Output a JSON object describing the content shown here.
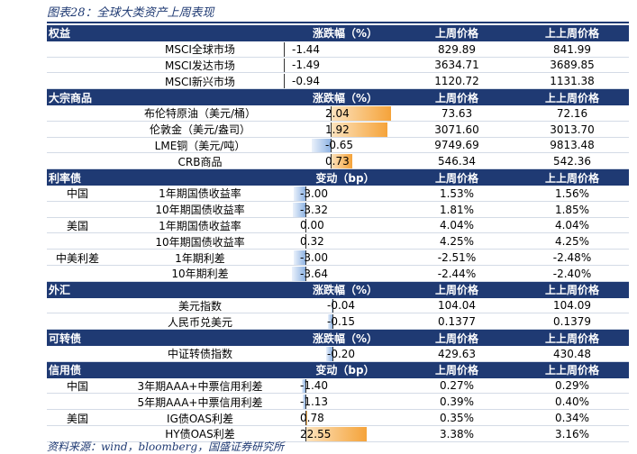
{
  "title": "图表28：全球大类资产上周表现",
  "source": "资料来源：wind，bloomberg，国盛证券研究所",
  "colors": {
    "header": "#1f3a73",
    "neg_bar": "#8fb4e3",
    "pos_bar": "#f5a33a"
  },
  "sections": [
    {
      "name": "权益",
      "headers": [
        "涨跌幅（%）",
        "上周价格",
        "上上周价格"
      ],
      "rows": [
        {
          "sub": "",
          "name": "MSCI全球市场",
          "chg": "-1.44",
          "v": -1.44,
          "p1": "829.89",
          "p2": "841.99"
        },
        {
          "sub": "",
          "name": "MSCI发达市场",
          "chg": "-1.49",
          "v": -1.49,
          "p1": "3634.71",
          "p2": "3689.85"
        },
        {
          "sub": "",
          "name": "MSCI新兴市场",
          "chg": "-0.94",
          "v": -0.94,
          "p1": "1120.72",
          "p2": "1131.38"
        }
      ]
    },
    {
      "name": "大宗商品",
      "headers": [
        "涨跌幅（%）",
        "上周价格",
        "上上周价格"
      ],
      "rows": [
        {
          "sub": "",
          "name": "布伦特原油（美元/桶）",
          "chg": "2.04",
          "v": 2.04,
          "p1": "73.63",
          "p2": "72.16"
        },
        {
          "sub": "",
          "name": "伦敦金（美元/盎司）",
          "chg": "1.92",
          "v": 1.92,
          "p1": "3071.60",
          "p2": "3013.70"
        },
        {
          "sub": "",
          "name": "LME铜（美元/吨）",
          "chg": "-0.65",
          "v": -0.65,
          "p1": "9749.69",
          "p2": "9813.48"
        },
        {
          "sub": "",
          "name": "CRB商品",
          "chg": "0.73",
          "v": 0.73,
          "p1": "546.34",
          "p2": "542.36"
        }
      ]
    },
    {
      "name": "利率债",
      "headers": [
        "变动（bp）",
        "上周价格",
        "上上周价格"
      ],
      "rows": [
        {
          "sub": "中国",
          "name": "1年期国债收益率",
          "chg": "-3.00",
          "v": -3.0,
          "p1": "1.53%",
          "p2": "1.56%"
        },
        {
          "sub": "",
          "name": "10年期国债收益率",
          "chg": "-3.32",
          "v": -3.32,
          "p1": "1.81%",
          "p2": "1.85%"
        },
        {
          "sub": "美国",
          "name": "1年期国债收益率",
          "chg": "0.00",
          "v": 0.0,
          "p1": "4.04%",
          "p2": "4.04%"
        },
        {
          "sub": "",
          "name": "10年期国债收益率",
          "chg": "0.32",
          "v": 0.32,
          "p1": "4.25%",
          "p2": "4.25%"
        },
        {
          "sub": "中美利差",
          "name": "1年期利差",
          "chg": "-3.00",
          "v": -3.0,
          "p1": "-2.51%",
          "p2": "-2.48%"
        },
        {
          "sub": "",
          "name": "10年期利差",
          "chg": "-3.64",
          "v": -3.64,
          "p1": "-2.44%",
          "p2": "-2.40%"
        }
      ]
    },
    {
      "name": "外汇",
      "headers": [
        "涨跌幅（%）",
        "上周价格",
        "上上周价格"
      ],
      "rows": [
        {
          "sub": "",
          "name": "美元指数",
          "chg": "-0.04",
          "v": -0.04,
          "p1": "104.04",
          "p2": "104.09"
        },
        {
          "sub": "",
          "name": "人民币兑美元",
          "chg": "-0.15",
          "v": -0.15,
          "p1": "0.1377",
          "p2": "0.1379"
        }
      ]
    },
    {
      "name": "可转债",
      "headers": [
        "涨跌幅（%）",
        "上周价格",
        "上上周价格"
      ],
      "rows": [
        {
          "sub": "",
          "name": "中证转债指数",
          "chg": "-0.20",
          "v": -0.2,
          "p1": "429.63",
          "p2": "430.48"
        }
      ]
    },
    {
      "name": "信用债",
      "headers": [
        "变动（bp）",
        "上周价格",
        "上上周价格"
      ],
      "rows": [
        {
          "sub": "中国",
          "name": "3年期AAA+中票信用利差",
          "chg": "-1.40",
          "v": -1.4,
          "p1": "0.27%",
          "p2": "0.29%"
        },
        {
          "sub": "",
          "name": "5年期AAA+中票信用利差",
          "chg": "-1.13",
          "v": -1.13,
          "p1": "0.39%",
          "p2": "0.40%"
        },
        {
          "sub": "美国",
          "name": "IG债OAS利差",
          "chg": "0.78",
          "v": 0.78,
          "p1": "0.35%",
          "p2": "0.34%"
        },
        {
          "sub": "",
          "name": "HY债OAS利差",
          "chg": "22.55",
          "v": 22.55,
          "p1": "3.38%",
          "p2": "3.16%"
        }
      ]
    }
  ]
}
